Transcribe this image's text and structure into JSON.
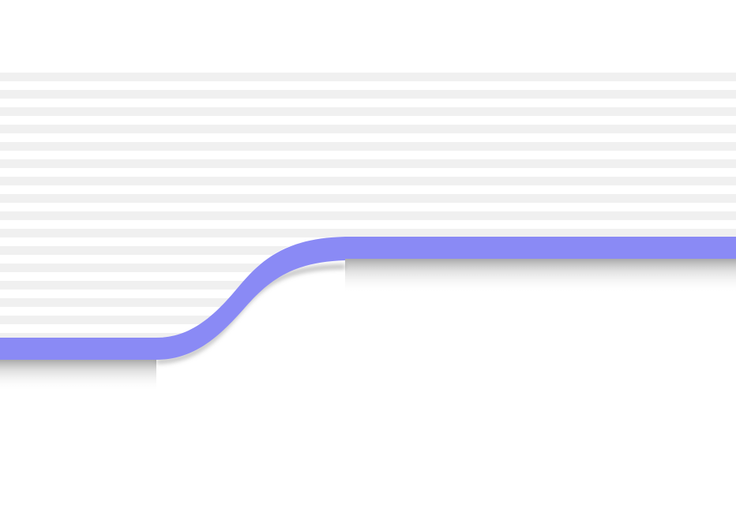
{
  "scene": {
    "background_color": "#ffffff",
    "stripe_color": "#f0f0f0",
    "ribbon_color": "#8a8af5",
    "shadow_color": "#9e9e9e"
  }
}
